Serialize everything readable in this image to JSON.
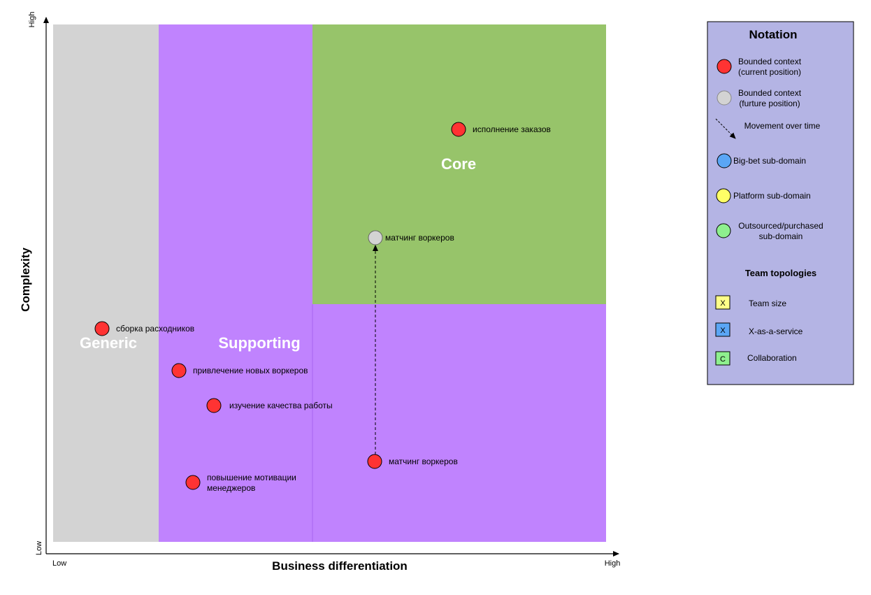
{
  "axes": {
    "y_label": "Complexity",
    "x_label": "Business differentiation",
    "y_high": "High",
    "y_low": "Low",
    "x_low": "Low",
    "x_high": "High"
  },
  "regions": {
    "generic": "Generic",
    "supporting": "Supporting",
    "core": "Core"
  },
  "contexts": [
    {
      "label": "исполнение заказов",
      "state": "current"
    },
    {
      "label": "матчинг воркеров",
      "state": "future"
    },
    {
      "label": "сборка расходников",
      "state": "current"
    },
    {
      "label": "привлечение новых воркеров",
      "state": "current"
    },
    {
      "label": "изучение качества работы",
      "state": "current"
    },
    {
      "label": "матчинг воркеров",
      "state": "current"
    },
    {
      "label": "повышение мотивации",
      "label2": "менеджеров",
      "state": "current"
    }
  ],
  "notation": {
    "title": "Notation",
    "current_line1": "Bounded context",
    "current_line2": "(current position)",
    "future_line1": "Bounded context",
    "future_line2": "(furture position)",
    "movement": "Movement over time",
    "bigbet": "Big-bet sub-domain",
    "platform": "Platform sub-domain",
    "outsourced_line1": "Outsourced/purchased",
    "outsourced_line2": "sub-domain",
    "team_title": "Team topologies",
    "team_size_mark": "X",
    "team_size": "Team size",
    "xaas_mark": "X",
    "xaas": "X-as-a-service",
    "collab_mark": "C",
    "collab": "Collaboration"
  },
  "colors": {
    "generic": "#d3d3d3",
    "supporting": "#c083fe",
    "core": "#97c46a",
    "current": "#ff3333",
    "future": "#d3d3d3",
    "bigbet": "#5aa6f5",
    "platform": "#ffff66",
    "outsourced": "#8ef08e",
    "legend_bg": "#b4b4e4",
    "team_size": "#ffff88",
    "xaas": "#5aa6f5",
    "collab": "#8ef08e"
  }
}
